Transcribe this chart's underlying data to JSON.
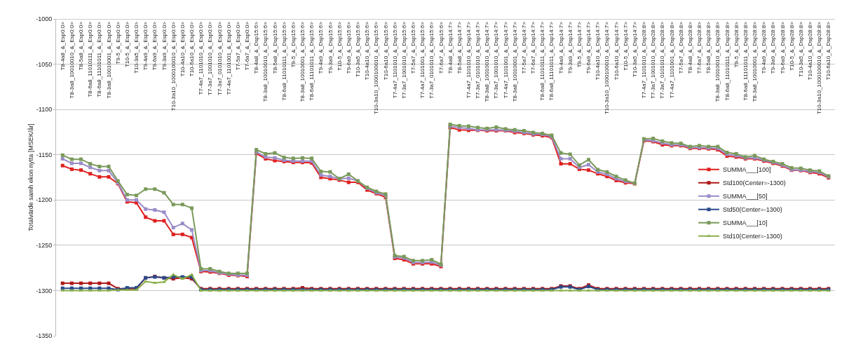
{
  "chart_data": {
    "type": "line",
    "ylabel": "Totalvärde samh ekon nytta [MSEK/år]",
    "categories": [
      "T8-4a8_&_Esp0:0>",
      "T8-3a8_10010010_&_Esp0:0>",
      "T8-5a8_&_Esp0:0>",
      "T8-6a8_11010111_&_Esp0:0>",
      "T8-6a8_11101011_&_Esp0:0>",
      "T8-3a8_10010001_&_Esp0:0>",
      "T9-5_&_Esp0:0>",
      "T10-5_&_Esp0:0>",
      "T10-3a5_&_Esp0:0>",
      "T9-4a9_&_Esp0:0>",
      "T9-6a9_&_Esp0:0>",
      "T9-3a9_&_Esp0:0>",
      "T10-3a10_1000100010_&_Esp0:0>",
      "T10-4a10_&_Esp0:0>",
      "T10-6a10_&_Esp0:0>",
      "T7-4a7_1101010_&_Esp0:0>",
      "T7-3a7_1001010_&_Esp0:0>",
      "T7-3a7_0101010_&_Esp0:0>",
      "T7-4a7_1101001_&_Esp0:0>",
      "T7-5a7_&_Esp0:0>",
      "T7-6a7_&_Esp0:0>",
      "T8-4a8_&_Dsp15:6>",
      "T8-3a8_10010010_&_Dsp15:6>",
      "T8-5a8_&_Dsp15:6>",
      "T8-6a8_11010111_&_Dsp15:6>",
      "T9-5_&_Dsp15:6>",
      "T8-3a8_10010001_&_Dsp15:6>",
      "T8-6a8_11101011_&_Dsp15:6>",
      "T9-4a9_&_Dsp15:6>",
      "T9-3a9_&_Dsp15:6>",
      "T10-5_&_Dsp15:6>",
      "T9-6a9_&_Dsp15:6>",
      "T10-3a5_&_Dsp15:6>",
      "T10-4a10_&_Dsp15:6>",
      "T10-3a10_1000100010_&_Dsp15:6>",
      "T10-6a10_&_Dsp15:6>",
      "T7-4a7_1101010_&_Dsp15:6>",
      "T7-3a7_1001010_&_Dsp15:6>",
      "T7-5a7_&_Dsp15:6>",
      "T7-4a7_1101001_&_Dsp15:6>",
      "T7-3a7_0101010_&_Dsp15:6>",
      "T7-6a7_&_Dsp15:6>",
      "T8-4a8_&_Dsp14:7>",
      "T8-5a8_&_Dsp14:7>",
      "T7-4a7_1101010_&_Dsp14:7>",
      "T7-3a7_0101010_&_Dsp14:7>",
      "T8-3a8_10010010_&_Dsp14:7>",
      "T7-3a7_1001010_&_Dsp14:7>",
      "T7-4a7_1101001_&_Dsp14:7>",
      "T8-3a8_10010001_&_Dsp14:7>",
      "T7-5a7_&_Dsp14:7>",
      "T7-6a7_&_Dsp14:7>",
      "T8-6a8_11010111_&_Dsp14:7>",
      "T8-6a8_11101011_&_Dsp14:7>",
      "T9-4a9_&_Dsp14:7>",
      "T9-3a9_&_Dsp14:7>",
      "T9-5_&_Dsp14:7>",
      "T9-6a9_&_Dsp14:7>",
      "T10-4a10_&_Dsp14:7>",
      "T10-3a10_1000100010_&_Dsp14:7>",
      "T10-6a10_&_Dsp14:7>",
      "T10-5_&_Dsp14:7>",
      "T10-3a5_&_Dsp14:7>",
      "T7-4a7_1101010_&_Dsp28:8>",
      "T7-3a7_1001010_&_Dsp28:8>",
      "T7-3a7_0101010_&_Dsp28:8>",
      "T7-4a7_1101001_&_Dsp28:8>",
      "T7-5a7_&_Dsp28:8>",
      "T8-4a8_&_Dsp28:8>",
      "T7-6a7_&_Dsp28:8>",
      "T8-5a8_&_Dsp28:8>",
      "T8-3a8_10010010_&_Dsp28:8>",
      "T8-6a8_11010111_&_Dsp28:8>",
      "T9-5_&_Dsp28:8>",
      "T8-6a8_11101011_&_Dsp28:8>",
      "T8-3a8_10010001_&_Dsp28:8>",
      "T9-4a9_&_Dsp28:8>",
      "T9-3a9_&_Dsp28:8>",
      "T9-6a9_&_Dsp28:8>",
      "T10-5_&_Dsp28:8>",
      "T10-3a5_&_Dsp28:8>",
      "T10-4a10_&_Dsp28:8>",
      "T10-3a10_1000100010_&_Dsp28:8>",
      "T10-6a10_&_Dsp28:8>"
    ],
    "ylim": [
      -1350,
      -1000
    ],
    "yticks": [
      -1350,
      -1300,
      -1250,
      -1200,
      -1150,
      -1100,
      -1050,
      -1000
    ],
    "grid": "y",
    "legend": "right",
    "series": [
      {
        "name": "SUMMA___[100]",
        "color": "#e02020",
        "marker": "square",
        "values": [
          -1162,
          -1166,
          -1167,
          -1171,
          -1174.5,
          -1174.5,
          -1182,
          -1202,
          -1203,
          -1219,
          -1223,
          -1223,
          -1238,
          -1238,
          -1241.5,
          -1279,
          -1279.5,
          -1281,
          -1283,
          -1283.5,
          -1284.5,
          -1148.5,
          -1154.5,
          -1156.5,
          -1157.5,
          -1158.5,
          -1158.5,
          -1159,
          -1175,
          -1176.5,
          -1178,
          -1180.5,
          -1180.5,
          -1189,
          -1193,
          -1197,
          -1264.5,
          -1266,
          -1270.5,
          -1270.5,
          -1270.5,
          -1273.5,
          -1120,
          -1122.5,
          -1123,
          -1123,
          -1123.5,
          -1123.5,
          -1123.5,
          -1125.5,
          -1126.5,
          -1128,
          -1129,
          -1131,
          -1160,
          -1160,
          -1166,
          -1167,
          -1171,
          -1174,
          -1178.5,
          -1181,
          -1182,
          -1134.5,
          -1135.5,
          -1139,
          -1140,
          -1140,
          -1143,
          -1143,
          -1143.5,
          -1144.5,
          -1151.5,
          -1152.5,
          -1154.5,
          -1154.5,
          -1157,
          -1159.5,
          -1162.5,
          -1167,
          -1167.5,
          -1169.5,
          -1171,
          -1175.5
        ]
      },
      {
        "name": "Std100(Center=-1300)",
        "color": "#b01818",
        "marker": "square",
        "values": [
          -1292,
          -1292,
          -1292,
          -1292,
          -1292,
          -1292,
          -1298,
          -1298,
          -1298,
          -1286,
          -1284.5,
          -1286,
          -1287,
          -1286,
          -1287,
          -1298,
          -1298,
          -1298,
          -1298,
          -1298,
          -1298,
          -1298,
          -1298,
          -1298,
          -1298,
          -1298,
          -1297,
          -1298,
          -1298,
          -1298,
          -1298,
          -1298,
          -1298,
          -1298,
          -1298,
          -1298,
          -1298,
          -1298,
          -1298,
          -1298,
          -1298,
          -1298,
          -1298,
          -1298,
          -1298,
          -1298,
          -1298,
          -1298,
          -1298,
          -1298,
          -1298,
          -1298,
          -1298,
          -1298,
          -1295,
          -1295,
          -1298,
          -1294,
          -1298,
          -1298,
          -1298,
          -1298,
          -1298,
          -1298,
          -1298,
          -1298,
          -1298,
          -1298,
          -1298,
          -1298,
          -1298,
          -1298,
          -1298,
          -1298,
          -1298,
          -1298,
          -1298,
          -1298,
          -1298,
          -1298,
          -1298,
          -1298,
          -1298,
          -1298
        ]
      },
      {
        "name": "SUMMA___[50]",
        "color": "#9a8cc8",
        "marker": "square",
        "values": [
          -1154.5,
          -1159.5,
          -1159.5,
          -1164,
          -1167.5,
          -1167.5,
          -1181,
          -1200,
          -1200,
          -1210,
          -1211,
          -1213.5,
          -1230.5,
          -1226,
          -1233,
          -1278,
          -1278,
          -1280.5,
          -1282,
          -1283,
          -1283,
          -1147,
          -1152.5,
          -1153.5,
          -1156,
          -1157,
          -1157,
          -1157,
          -1172.5,
          -1174,
          -1176.5,
          -1176,
          -1179,
          -1187,
          -1192,
          -1195,
          -1263,
          -1264,
          -1269,
          -1269,
          -1268.5,
          -1272,
          -1118.5,
          -1120,
          -1121,
          -1122.5,
          -1122.5,
          -1122.5,
          -1123,
          -1124,
          -1125.5,
          -1127,
          -1127.5,
          -1130,
          -1154.5,
          -1154.5,
          -1164,
          -1161,
          -1169,
          -1171.5,
          -1176.5,
          -1179.5,
          -1181.5,
          -1133.5,
          -1134.5,
          -1137,
          -1139,
          -1139,
          -1142,
          -1142,
          -1142.5,
          -1143,
          -1149.5,
          -1151,
          -1153.5,
          -1153.5,
          -1156,
          -1158.5,
          -1161.5,
          -1166.5,
          -1167,
          -1168.5,
          -1169.5,
          -1174.5
        ]
      },
      {
        "name": "Std50(Center=-1300)",
        "color": "#2a4a8a",
        "marker": "square",
        "values": [
          -1297.5,
          -1297.5,
          -1297.5,
          -1297.5,
          -1297.5,
          -1297.5,
          -1299,
          -1297,
          -1297,
          -1286,
          -1285,
          -1286,
          -1285,
          -1285,
          -1285,
          -1299,
          -1299,
          -1299,
          -1299,
          -1299,
          -1299,
          -1299,
          -1299,
          -1299,
          -1299,
          -1299,
          -1299,
          -1299,
          -1299,
          -1299,
          -1299,
          -1299,
          -1299,
          -1299,
          -1299,
          -1299,
          -1299,
          -1299,
          -1299,
          -1299,
          -1299,
          -1299,
          -1299,
          -1299,
          -1299,
          -1299,
          -1299,
          -1299,
          -1299,
          -1299,
          -1299,
          -1299,
          -1299,
          -1299,
          -1296,
          -1296,
          -1299,
          -1295.5,
          -1299,
          -1299,
          -1299,
          -1299,
          -1299,
          -1299,
          -1299,
          -1299,
          -1299,
          -1299,
          -1299,
          -1299,
          -1299,
          -1299,
          -1299,
          -1299,
          -1299,
          -1299,
          -1299,
          -1299,
          -1299,
          -1299,
          -1299,
          -1299,
          -1299,
          -1299
        ]
      },
      {
        "name": "SUMMA___[10]",
        "color": "#7a9a5a",
        "marker": "square",
        "values": [
          -1150.5,
          -1155,
          -1155,
          -1160,
          -1163,
          -1163,
          -1179,
          -1194,
          -1195,
          -1188,
          -1188,
          -1192,
          -1205,
          -1205,
          -1209,
          -1276,
          -1276,
          -1279,
          -1281,
          -1281,
          -1281,
          -1144.5,
          -1149,
          -1148,
          -1153,
          -1154,
          -1153.5,
          -1154,
          -1168.5,
          -1169,
          -1176.5,
          -1171.5,
          -1179,
          -1186,
          -1190.5,
          -1193.5,
          -1261.5,
          -1262.5,
          -1267,
          -1267,
          -1266,
          -1271,
          -1116.5,
          -1118,
          -1118.5,
          -1120,
          -1121,
          -1119.5,
          -1121.5,
          -1122.5,
          -1123.5,
          -1125.5,
          -1126.5,
          -1128.5,
          -1148,
          -1149.5,
          -1161.5,
          -1155.5,
          -1166.5,
          -1169,
          -1174,
          -1178,
          -1181.5,
          -1132.5,
          -1132,
          -1135,
          -1137,
          -1137.5,
          -1141,
          -1140,
          -1141,
          -1141,
          -1147.5,
          -1149,
          -1152.5,
          -1151,
          -1155,
          -1157.5,
          -1160,
          -1164.5,
          -1165,
          -1167,
          -1168,
          -1173.5
        ]
      },
      {
        "name": "Std10(Center=-1300)",
        "color": "#8ab04a",
        "marker": "triangle",
        "values": [
          -1300,
          -1300,
          -1300,
          -1300,
          -1300,
          -1300,
          -1299.5,
          -1299.5,
          -1299.5,
          -1290,
          -1291.5,
          -1290.5,
          -1282.5,
          -1287,
          -1282.5,
          -1300,
          -1300,
          -1300,
          -1300,
          -1300,
          -1300,
          -1300,
          -1300,
          -1300,
          -1300,
          -1300,
          -1300,
          -1300,
          -1300,
          -1300,
          -1300,
          -1300,
          -1300,
          -1300,
          -1300,
          -1300,
          -1300,
          -1300,
          -1300,
          -1300,
          -1300,
          -1300,
          -1300,
          -1300,
          -1300,
          -1300,
          -1300,
          -1300,
          -1300,
          -1300,
          -1300,
          -1300,
          -1300,
          -1300,
          -1300,
          -1300,
          -1300,
          -1300,
          -1300,
          -1300,
          -1300,
          -1300,
          -1300,
          -1300,
          -1300,
          -1300,
          -1300,
          -1300,
          -1300,
          -1300,
          -1300,
          -1300,
          -1300,
          -1300,
          -1300,
          -1300,
          -1300,
          -1300,
          -1300,
          -1300,
          -1300,
          -1300,
          -1300,
          -1300
        ]
      }
    ]
  }
}
